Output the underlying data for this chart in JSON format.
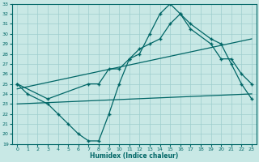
{
  "xlabel": "Humidex (Indice chaleur)",
  "bg_color": "#c8e8e5",
  "grid_color": "#9ecece",
  "line_color": "#006666",
  "xlim": [
    -0.5,
    23.5
  ],
  "ylim": [
    19,
    33
  ],
  "xticks": [
    0,
    1,
    2,
    3,
    4,
    5,
    6,
    7,
    8,
    9,
    10,
    11,
    12,
    13,
    14,
    15,
    16,
    17,
    18,
    19,
    20,
    21,
    22,
    23
  ],
  "yticks": [
    19,
    20,
    21,
    22,
    23,
    24,
    25,
    26,
    27,
    28,
    29,
    30,
    31,
    32,
    33
  ],
  "curve1_x": [
    0,
    1,
    3,
    4,
    5,
    6,
    7,
    8,
    9,
    10,
    11,
    12,
    13,
    14,
    15,
    16,
    17,
    19,
    20,
    21,
    22,
    23
  ],
  "curve1_y": [
    25,
    24,
    23,
    22,
    21,
    20,
    19.3,
    19.3,
    22,
    25,
    27.5,
    28,
    30,
    32,
    33,
    32,
    31,
    29.5,
    29,
    27,
    25,
    23.5
  ],
  "curve2_x": [
    0,
    3,
    7,
    8,
    9,
    10,
    11,
    12,
    13,
    14,
    15,
    16,
    17,
    19,
    20,
    21,
    22,
    23
  ],
  "curve2_y": [
    25,
    23.5,
    25,
    25,
    26.5,
    26.5,
    27.5,
    28.5,
    29,
    29.5,
    31,
    32,
    30.5,
    29,
    27.5,
    27.5,
    26,
    25
  ],
  "line3_x": [
    0,
    23
  ],
  "line3_y": [
    24.5,
    29.5
  ],
  "line4_x": [
    0,
    23
  ],
  "line4_y": [
    23,
    24
  ]
}
